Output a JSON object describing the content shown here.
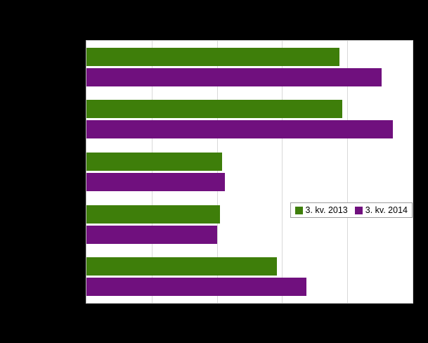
{
  "chart_data": {
    "type": "bar",
    "orientation": "horizontal",
    "categories": [
      "",
      "",
      "",
      "",
      ""
    ],
    "series": [
      {
        "name": "3. kv. 2013",
        "color": "#3e7e0a",
        "values": [
          77.5,
          78.5,
          41.5,
          41.0,
          58.5
        ]
      },
      {
        "name": "3. kv. 2014",
        "color": "#70107e",
        "values": [
          90.5,
          94.0,
          42.5,
          40.0,
          67.5
        ]
      }
    ],
    "value_unit": "percent-of-visible-axis",
    "xlim": [
      0,
      100
    ],
    "gridline_percents": [
      20,
      40,
      60,
      80,
      100
    ],
    "grid": true,
    "legend_position": "inside-right",
    "plot_background": "#ffffff",
    "page_background": "#000000"
  }
}
